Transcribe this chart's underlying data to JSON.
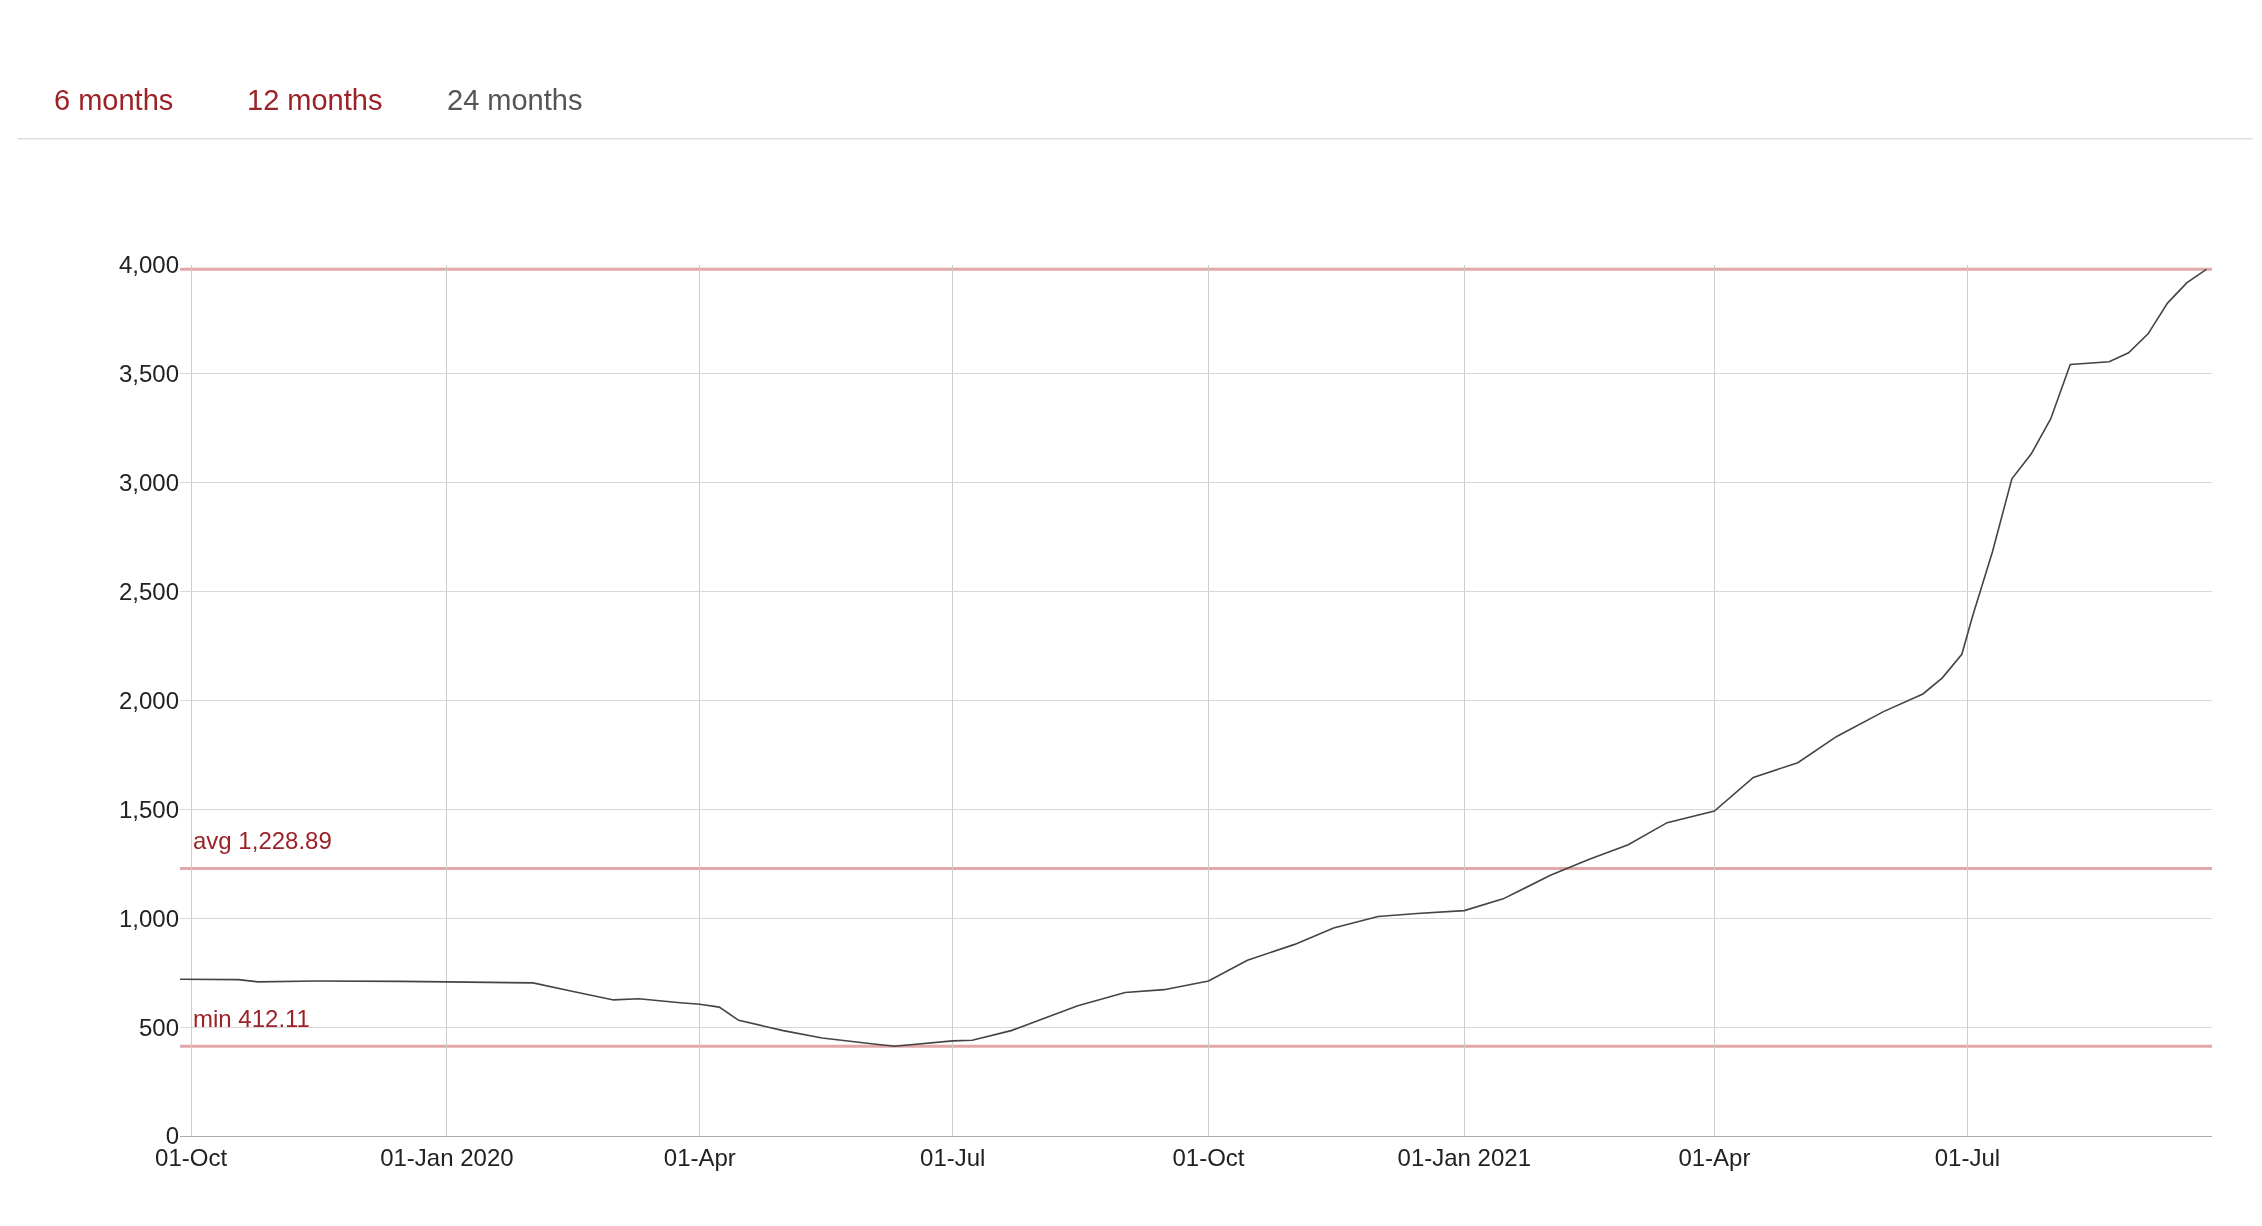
{
  "chart_data": {
    "type": "line",
    "annotations": [
      "6 months",
      "12 months",
      "24 months"
    ],
    "x": [
      "2019-09-27",
      "2019-10-18",
      "2019-10-25",
      "2019-11-15",
      "2019-12-15",
      "2020-01-01",
      "2020-02-01",
      "2020-02-15",
      "2020-03-01",
      "2020-03-10",
      "2020-03-25",
      "2020-04-01",
      "2020-04-08",
      "2020-04-15",
      "2020-05-01",
      "2020-05-15",
      "2020-06-01",
      "2020-06-10",
      "2020-07-01",
      "2020-07-08",
      "2020-07-22",
      "2020-08-15",
      "2020-09-01",
      "2020-09-15",
      "2020-10-01",
      "2020-10-15",
      "2020-11-01",
      "2020-11-15",
      "2020-12-01",
      "2020-12-15",
      "2021-01-01",
      "2021-01-15",
      "2021-02-01",
      "2021-02-15",
      "2021-03-01",
      "2021-03-15",
      "2021-04-01",
      "2021-04-15",
      "2021-05-01",
      "2021-05-15",
      "2021-06-01",
      "2021-06-15",
      "2021-06-22",
      "2021-06-29",
      "2021-07-03",
      "2021-07-10",
      "2021-07-17",
      "2021-07-24",
      "2021-07-31",
      "2021-08-07",
      "2021-08-21",
      "2021-08-28",
      "2021-09-04",
      "2021-09-11",
      "2021-09-18",
      "2021-09-25"
    ],
    "series": [
      {
        "color": "#444444",
        "values": [
          720,
          718,
          708,
          712,
          710,
          708,
          703,
          665,
          625,
          630,
          612,
          605,
          592,
          531,
          484,
          450,
          425,
          412,
          437,
          440,
          484,
          598,
          659,
          672,
          712,
          807,
          880,
          955,
          1008,
          1022,
          1035,
          1089,
          1197,
          1271,
          1338,
          1439,
          1492,
          1647,
          1714,
          1835,
          1950,
          2030,
          2104,
          2212,
          2393,
          2682,
          3018,
          3133,
          3294,
          3543,
          3556,
          3597,
          3684,
          3825,
          3919,
          3980
        ]
      }
    ],
    "xlim": [
      "2019-09-27",
      "2021-09-27"
    ],
    "xticks": [
      {
        "value": "2019-10-01",
        "label": "01-Oct"
      },
      {
        "value": "2020-01-01",
        "label": "01-Jan 2020"
      },
      {
        "value": "2020-04-01",
        "label": "01-Apr"
      },
      {
        "value": "2020-07-01",
        "label": "01-Jul"
      },
      {
        "value": "2020-10-01",
        "label": "01-Oct"
      },
      {
        "value": "2021-01-01",
        "label": "01-Jan 2021"
      },
      {
        "value": "2021-04-01",
        "label": "01-Apr"
      },
      {
        "value": "2021-07-01",
        "label": "01-Jul"
      }
    ],
    "ylim": [
      0,
      4000
    ],
    "yticks": [
      {
        "value": 0,
        "label": "0"
      },
      {
        "value": 500,
        "label": "500"
      },
      {
        "value": 1000,
        "label": "1,000"
      },
      {
        "value": 1500,
        "label": "1,500"
      },
      {
        "value": 2000,
        "label": "2,000"
      },
      {
        "value": 2500,
        "label": "2,500"
      },
      {
        "value": 3000,
        "label": "3,000"
      },
      {
        "value": 3500,
        "label": "3,500"
      },
      {
        "value": 4000,
        "label": "4,000"
      }
    ],
    "ref_lines": [
      {
        "axis": "y",
        "value": 3980,
        "color": "#e0a8a8"
      },
      {
        "axis": "y",
        "value": 1228.89,
        "label": "avg 1,228.89",
        "color": "#e0a8a8"
      },
      {
        "axis": "y",
        "value": 412.11,
        "label": "min 412.11",
        "color": "#e0a8a8"
      }
    ],
    "grid": true,
    "marker": "none",
    "line_style": "solid"
  }
}
